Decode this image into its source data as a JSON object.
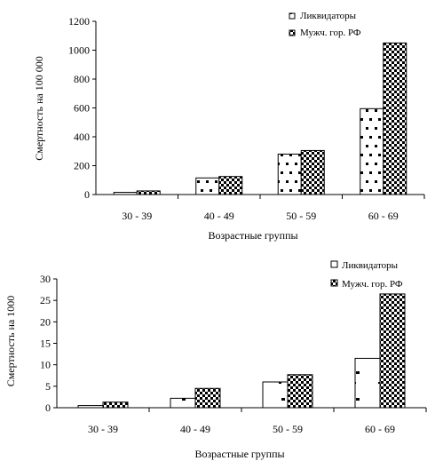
{
  "chart_data": [
    {
      "type": "bar",
      "categories": [
        "30 - 39",
        "40 - 49",
        "50 - 59",
        "60 - 69"
      ],
      "series": [
        {
          "name": "Ликвидаторы",
          "values": [
            15,
            115,
            280,
            595
          ]
        },
        {
          "name": "Мужч. гор. РФ",
          "values": [
            25,
            125,
            305,
            1050
          ]
        }
      ],
      "xlabel": "Возрастные группы",
      "ylabel": "Смертность на 100 000",
      "ylim": [
        0,
        1200
      ],
      "yticks": [
        "0",
        "200",
        "400",
        "600",
        "800",
        "1000",
        "1200"
      ],
      "legend": "top-right",
      "grid": false
    },
    {
      "type": "bar",
      "categories": [
        "30 - 39",
        "40 - 49",
        "50 - 59",
        "60 - 69"
      ],
      "series": [
        {
          "name": "Ликвидаторы",
          "values": [
            0.5,
            2.2,
            6.0,
            11.5
          ]
        },
        {
          "name": "Мужч. гор. РФ",
          "values": [
            1.3,
            4.5,
            7.7,
            26.5
          ]
        }
      ],
      "xlabel": "Возрастные группы",
      "ylabel": "Смертность на 1000",
      "ylim": [
        0,
        30
      ],
      "yticks": [
        "0",
        "5",
        "10",
        "15",
        "20",
        "25",
        "30"
      ],
      "legend": "top-right",
      "grid": false
    }
  ]
}
